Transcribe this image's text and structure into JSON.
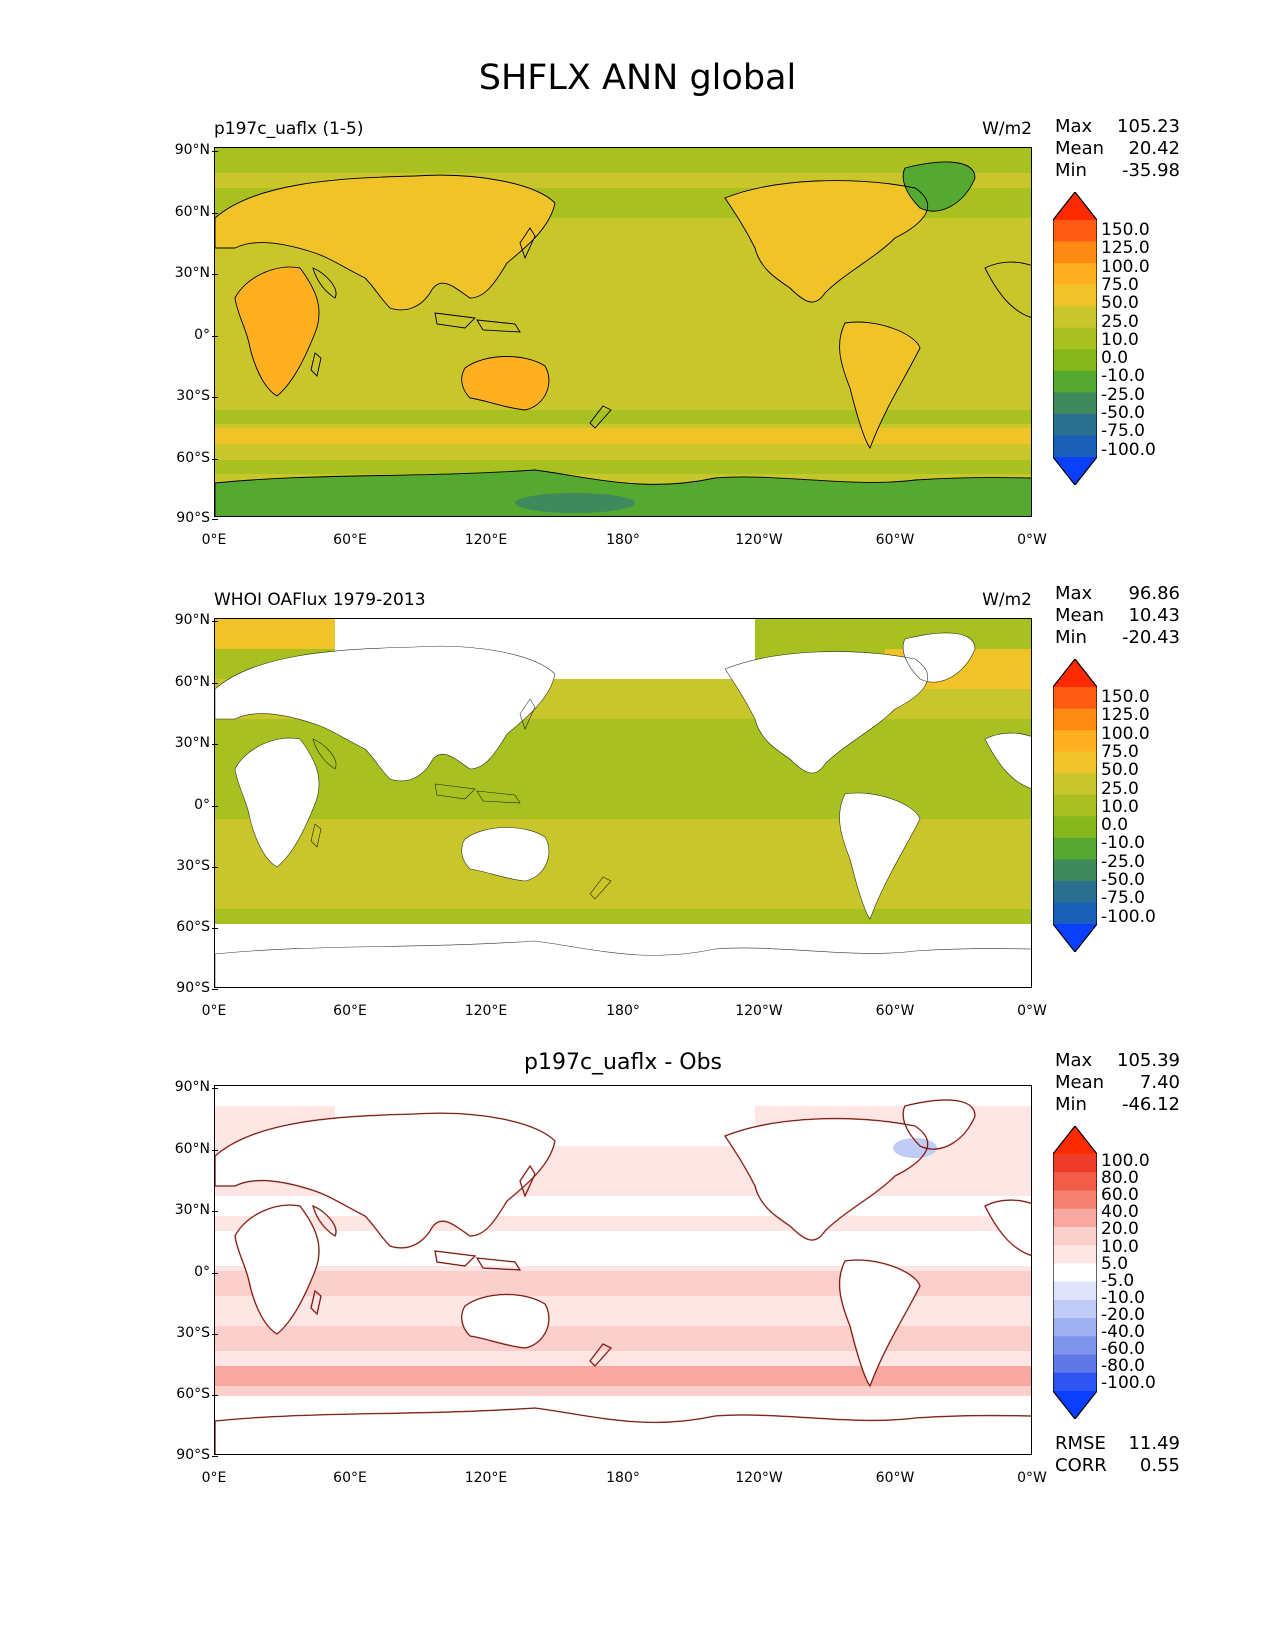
{
  "figure": {
    "title": "SHFLX ANN global"
  },
  "axes": {
    "yticks": [
      "90°N",
      "60°N",
      "30°N",
      "0°",
      "30°S",
      "60°S",
      "90°S"
    ],
    "xticks": [
      "0°E",
      "60°E",
      "120°E",
      "180°",
      "120°W",
      "60°W",
      "0°W"
    ]
  },
  "panels": [
    {
      "title_left": "p197c_uaflx (1-5)",
      "title_right": "W/m2",
      "title_center": "",
      "stats": [
        {
          "label": "Max",
          "value": "105.23"
        },
        {
          "label": "Mean",
          "value": "20.42"
        },
        {
          "label": "Min",
          "value": "-35.98"
        }
      ],
      "colorbar_labels": [
        "150.0",
        "125.0",
        "100.0",
        "75.0",
        "50.0",
        "25.0",
        "10.0",
        "0.0",
        "-10.0",
        "-25.0",
        "-50.0",
        "-75.0",
        "-100.0"
      ]
    },
    {
      "title_left": "WHOI OAFlux 1979-2013",
      "title_right": "W/m2",
      "title_center": "",
      "stats": [
        {
          "label": "Max",
          "value": "96.86"
        },
        {
          "label": "Mean",
          "value": "10.43"
        },
        {
          "label": "Min",
          "value": "-20.43"
        }
      ],
      "colorbar_labels": [
        "150.0",
        "125.0",
        "100.0",
        "75.0",
        "50.0",
        "25.0",
        "10.0",
        "0.0",
        "-10.0",
        "-25.0",
        "-50.0",
        "-75.0",
        "-100.0"
      ]
    },
    {
      "title_left": "",
      "title_right": "",
      "title_center": "p197c_uaflx - Obs",
      "stats": [
        {
          "label": "Max",
          "value": "105.39"
        },
        {
          "label": "Mean",
          "value": "7.40"
        },
        {
          "label": "Min",
          "value": "-46.12"
        }
      ],
      "colorbar_labels": [
        "100.0",
        "80.0",
        "60.0",
        "40.0",
        "20.0",
        "10.0",
        "5.0",
        "-5.0",
        "-10.0",
        "-20.0",
        "-40.0",
        "-60.0",
        "-80.0",
        "-100.0"
      ],
      "extra_stats": [
        {
          "label": "RMSE",
          "value": "11.49"
        },
        {
          "label": "CORR",
          "value": "0.55"
        }
      ]
    }
  ],
  "colors": {
    "flux_scale": [
      "#ff2a00",
      "#ff5a12",
      "#ff8a12",
      "#ffb020",
      "#f0c428",
      "#c8c62a",
      "#a8c020",
      "#86b81e",
      "#55a830",
      "#3f8a5c",
      "#2a6f90",
      "#1a5fb8",
      "#0b3fff"
    ],
    "diff_scale": [
      "#ff2a00",
      "#ee3b2a",
      "#f25c48",
      "#f58070",
      "#f8a8a0",
      "#fbd0cc",
      "#fde6e4",
      "#ffffff",
      "#dfe4fb",
      "#c0cbf6",
      "#9fb0f1",
      "#7f94ec",
      "#5f78e8",
      "#2e55f2",
      "#0b3fff"
    ],
    "land_outline": "#000000"
  }
}
